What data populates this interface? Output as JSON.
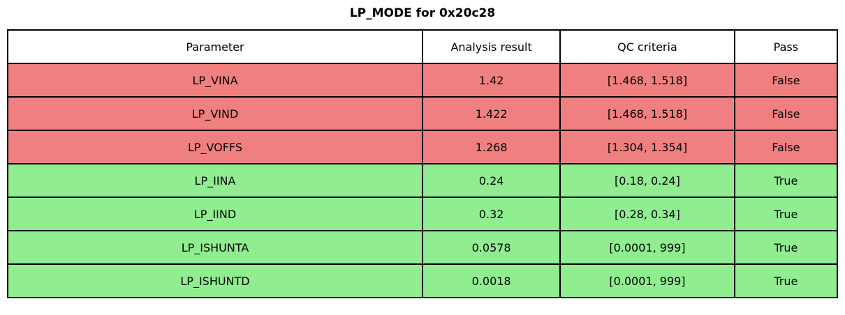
{
  "title": "LP_MODE for 0x20c28",
  "chart_data": {
    "type": "table",
    "title": "LP_MODE for 0x20c28",
    "columns": [
      "Parameter",
      "Analysis result",
      "QC criteria",
      "Pass"
    ],
    "rows": [
      {
        "parameter": "LP_VINA",
        "result": "1.42",
        "criteria": "[1.468, 1.518]",
        "pass": "False",
        "status": "fail"
      },
      {
        "parameter": "LP_VIND",
        "result": "1.422",
        "criteria": "[1.468, 1.518]",
        "pass": "False",
        "status": "fail"
      },
      {
        "parameter": "LP_VOFFS",
        "result": "1.268",
        "criteria": "[1.304, 1.354]",
        "pass": "False",
        "status": "fail"
      },
      {
        "parameter": "LP_IINA",
        "result": "0.24",
        "criteria": "[0.18, 0.24]",
        "pass": "True",
        "status": "pass"
      },
      {
        "parameter": "LP_IIND",
        "result": "0.32",
        "criteria": "[0.28, 0.34]",
        "pass": "True",
        "status": "pass"
      },
      {
        "parameter": "LP_ISHUNTA",
        "result": "0.0578",
        "criteria": "[0.0001, 999]",
        "pass": "True",
        "status": "pass"
      },
      {
        "parameter": "LP_ISHUNTD",
        "result": "0.0018",
        "criteria": "[0.0001, 999]",
        "pass": "True",
        "status": "pass"
      }
    ],
    "colors": {
      "fail_row": "#f08080",
      "pass_row": "#90ee90",
      "header_bg": "#ffffff",
      "border": "#000000",
      "text": "#000000"
    },
    "layout": {
      "legend": "none",
      "grid": "cell-borders"
    }
  }
}
